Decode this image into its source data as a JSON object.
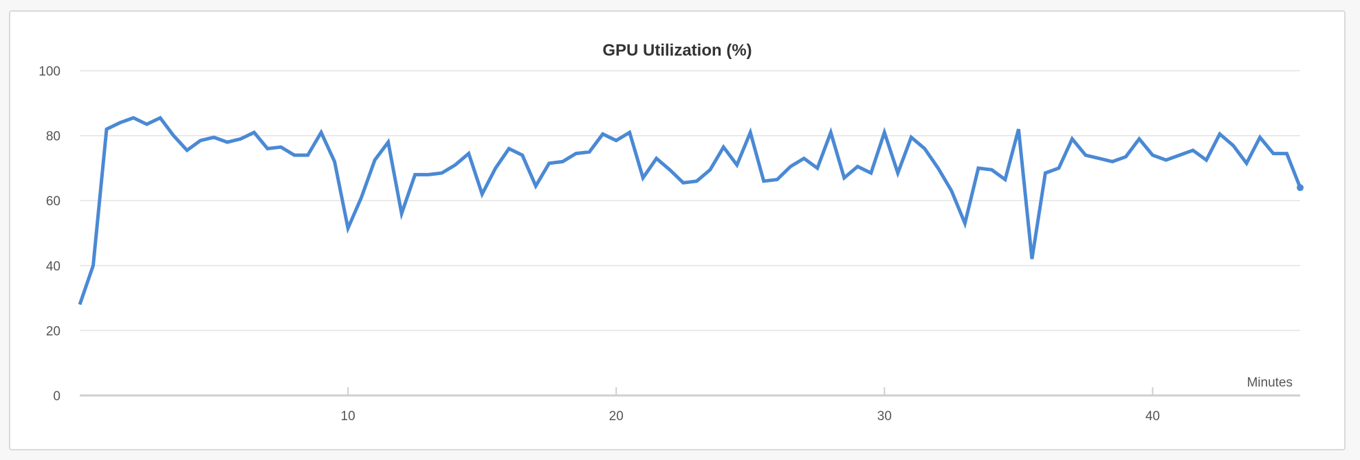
{
  "chart_data": {
    "type": "line",
    "title": "GPU Utilization (%)",
    "xlabel": "Minutes",
    "ylabel": "",
    "xlim": [
      0,
      45.5
    ],
    "ylim": [
      0,
      100
    ],
    "x_ticks": [
      10,
      20,
      30,
      40
    ],
    "y_ticks": [
      0,
      20,
      40,
      60,
      80,
      100
    ],
    "grid": true,
    "legend": "none",
    "line_color": "#4a89d4",
    "series": [
      {
        "x": [
          0.0,
          0.5,
          1.0,
          1.5,
          2.0,
          2.5,
          3.0,
          3.5,
          4.0,
          4.5,
          5.0,
          5.5,
          6.0,
          6.5,
          7.0,
          7.5,
          8.0,
          8.5,
          9.0,
          9.5,
          10.0,
          10.5,
          11.0,
          11.5,
          12.0,
          12.5,
          13.0,
          13.5,
          14.0,
          14.5,
          15.0,
          15.5,
          16.0,
          16.5,
          17.0,
          17.5,
          18.0,
          18.5,
          19.0,
          19.5,
          20.0,
          20.5,
          21.0,
          21.5,
          22.0,
          22.5,
          23.0,
          23.5,
          24.0,
          24.5,
          25.0,
          25.5,
          26.0,
          26.5,
          27.0,
          27.5,
          28.0,
          28.5,
          29.0,
          29.5,
          30.0,
          30.5,
          31.0,
          31.5,
          32.0,
          32.5,
          33.0,
          33.5,
          34.0,
          34.5,
          35.0,
          35.5,
          36.0,
          36.5,
          37.0,
          37.5,
          38.0,
          38.5,
          39.0,
          39.5,
          40.0,
          40.5,
          41.0,
          41.5,
          42.0,
          42.5,
          43.0,
          43.5,
          44.0,
          44.5,
          45.0,
          45.5
        ],
        "values": [
          28,
          40,
          82,
          84,
          85.5,
          83.5,
          85.5,
          80,
          75.5,
          78.5,
          79.5,
          78,
          79,
          81,
          76,
          76.5,
          74,
          74,
          81,
          72,
          51.5,
          61,
          72.5,
          78,
          56,
          68,
          68,
          68.5,
          71,
          74.5,
          62,
          70,
          76,
          74,
          64.5,
          71.5,
          72,
          74.5,
          75,
          80.5,
          78.5,
          81,
          67,
          73,
          69.5,
          65.5,
          66,
          69.5,
          76.5,
          71,
          81,
          66,
          66.5,
          70.5,
          73,
          70,
          81,
          67,
          70.5,
          68.5,
          81,
          68.5,
          79.5,
          76,
          70,
          63,
          53,
          70,
          69.5,
          66.5,
          82,
          42,
          68.5,
          70,
          79,
          74,
          73,
          72,
          73.5,
          79,
          74,
          72.5,
          74,
          75.5,
          72.5,
          80.5,
          77,
          71.5,
          79.5,
          74.5,
          74.5,
          64
        ]
      }
    ]
  }
}
